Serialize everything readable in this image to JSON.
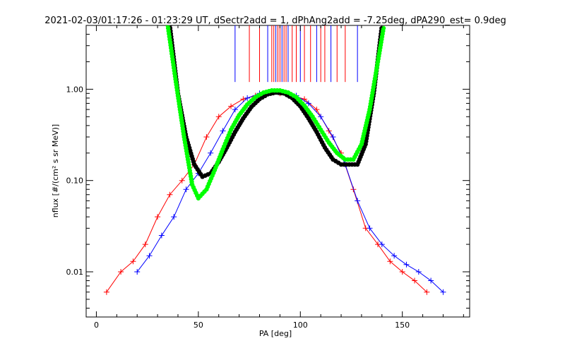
{
  "chart_data": {
    "type": "line",
    "title": "2021-02-03/01:17:26 - 01:23:29 UT, dSectr2add = 1, dPhAng2add = -7.25deg, dPA290_est=   0.9deg",
    "xlabel": "PA [deg]",
    "ylabel": "nflux [#/(cm² s sr MeV)]",
    "xlim": [
      -5,
      183
    ],
    "ylim": [
      0.0032,
      5.0
    ],
    "yscale": "log",
    "xticks": [
      0,
      50,
      100,
      150
    ],
    "xtick_labels": [
      "0",
      "50",
      "100",
      "150"
    ],
    "yticks": [
      0.01,
      0.1,
      1.0
    ],
    "ytick_labels": [
      "0.01",
      "0.10",
      "1.00"
    ],
    "grid": false,
    "colors": {
      "red": "#ff0000",
      "blue": "#0000ff",
      "black": "#000000",
      "green": "#00ff00"
    },
    "series": [
      {
        "color": "red",
        "style": "lines with plus markers",
        "x": [
          5,
          12,
          18,
          24,
          30,
          36,
          42,
          48,
          54,
          60,
          66,
          72,
          78,
          84,
          90,
          96,
          102,
          108,
          114,
          120,
          126,
          132,
          138,
          144,
          150,
          156,
          162
        ],
        "y": [
          0.006,
          0.01,
          0.013,
          0.02,
          0.04,
          0.07,
          0.1,
          0.15,
          0.3,
          0.5,
          0.65,
          0.78,
          0.85,
          0.9,
          0.9,
          0.85,
          0.78,
          0.6,
          0.35,
          0.2,
          0.08,
          0.03,
          0.02,
          0.013,
          0.01,
          0.008,
          0.006
        ]
      },
      {
        "color": "blue",
        "style": "lines with plus markers",
        "x": [
          20,
          26,
          32,
          38,
          44,
          50,
          56,
          62,
          68,
          74,
          80,
          86,
          92,
          98,
          104,
          110,
          116,
          122,
          128,
          134,
          140,
          146,
          152,
          158,
          164,
          170
        ],
        "y": [
          0.01,
          0.015,
          0.025,
          0.04,
          0.08,
          0.12,
          0.2,
          0.35,
          0.6,
          0.8,
          0.9,
          0.95,
          0.92,
          0.85,
          0.7,
          0.5,
          0.3,
          0.15,
          0.06,
          0.03,
          0.02,
          0.015,
          0.012,
          0.01,
          0.008,
          0.006
        ]
      },
      {
        "color": "black",
        "style": "thick dotted fit curve",
        "x": [
          36,
          40,
          44,
          48,
          52,
          56,
          60,
          64,
          68,
          72,
          76,
          80,
          84,
          88,
          92,
          96,
          100,
          104,
          108,
          112,
          116,
          120,
          124,
          128,
          132,
          136,
          140
        ],
        "y": [
          5.0,
          0.9,
          0.3,
          0.15,
          0.11,
          0.12,
          0.16,
          0.23,
          0.34,
          0.48,
          0.64,
          0.78,
          0.88,
          0.92,
          0.9,
          0.8,
          0.65,
          0.48,
          0.34,
          0.23,
          0.17,
          0.15,
          0.15,
          0.15,
          0.25,
          0.9,
          5.0
        ]
      },
      {
        "color": "green",
        "style": "thick dotted fit curve",
        "x": [
          35,
          39,
          43,
          47,
          50,
          54,
          58,
          62,
          66,
          70,
          74,
          78,
          82,
          86,
          90,
          94,
          98,
          102,
          106,
          110,
          114,
          118,
          122,
          126,
          130,
          134,
          138,
          141
        ],
        "y": [
          5.0,
          1.2,
          0.3,
          0.09,
          0.064,
          0.08,
          0.13,
          0.22,
          0.36,
          0.52,
          0.68,
          0.82,
          0.92,
          0.97,
          0.97,
          0.92,
          0.82,
          0.66,
          0.5,
          0.36,
          0.26,
          0.2,
          0.17,
          0.17,
          0.25,
          0.6,
          2.0,
          5.0
        ]
      }
    ],
    "spikes": {
      "color": "red/blue",
      "x": [
        68,
        75,
        80,
        84,
        86,
        87,
        88,
        89,
        90,
        91,
        92,
        93,
        94,
        96,
        98,
        100,
        102,
        105,
        108,
        110,
        112,
        115,
        118,
        122,
        128
      ],
      "y_base": 1.2
    }
  }
}
